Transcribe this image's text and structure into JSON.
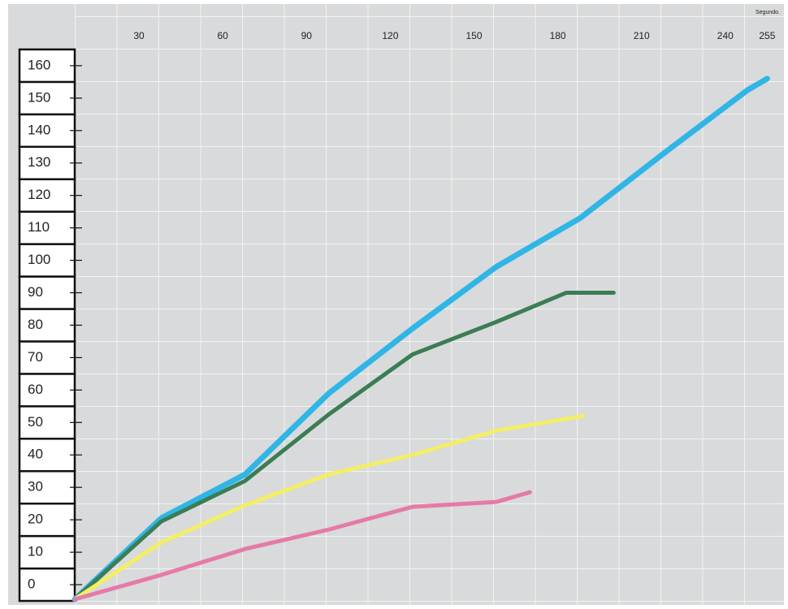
{
  "chart_data": {
    "type": "line",
    "x_label": "Segundo.",
    "xlim": [
      7,
      261
    ],
    "xticks": [
      30,
      60,
      90,
      120,
      150,
      180,
      210,
      240,
      255
    ],
    "ylim": [
      -6,
      179
    ],
    "yticks": [
      0,
      10,
      20,
      30,
      40,
      50,
      60,
      70,
      80,
      90,
      100,
      110,
      120,
      130,
      140,
      150,
      160
    ],
    "series": [
      {
        "color": "#2fb6e6",
        "x": [
          7,
          38,
          68,
          98,
          128,
          158,
          188,
          218,
          248,
          255
        ],
        "values": [
          -4.5,
          20.5,
          34,
          59,
          79,
          98,
          113,
          133,
          152.5,
          156
        ]
      },
      {
        "color": "#3b7d55",
        "x": [
          7,
          38,
          68,
          98,
          128,
          158,
          183,
          200
        ],
        "values": [
          -4.5,
          19.5,
          32,
          52.5,
          71,
          81,
          90,
          90
        ]
      },
      {
        "color": "#f4ee66",
        "x": [
          7,
          38,
          68,
          98,
          128,
          158,
          189
        ],
        "values": [
          -4.5,
          13,
          24.5,
          34,
          40,
          47.5,
          52
        ]
      },
      {
        "color": "#e57aa8",
        "x": [
          7,
          38,
          68,
          98,
          128,
          158,
          170
        ],
        "values": [
          -4.5,
          3,
          11,
          17,
          24,
          25.5,
          28.5
        ]
      }
    ]
  }
}
